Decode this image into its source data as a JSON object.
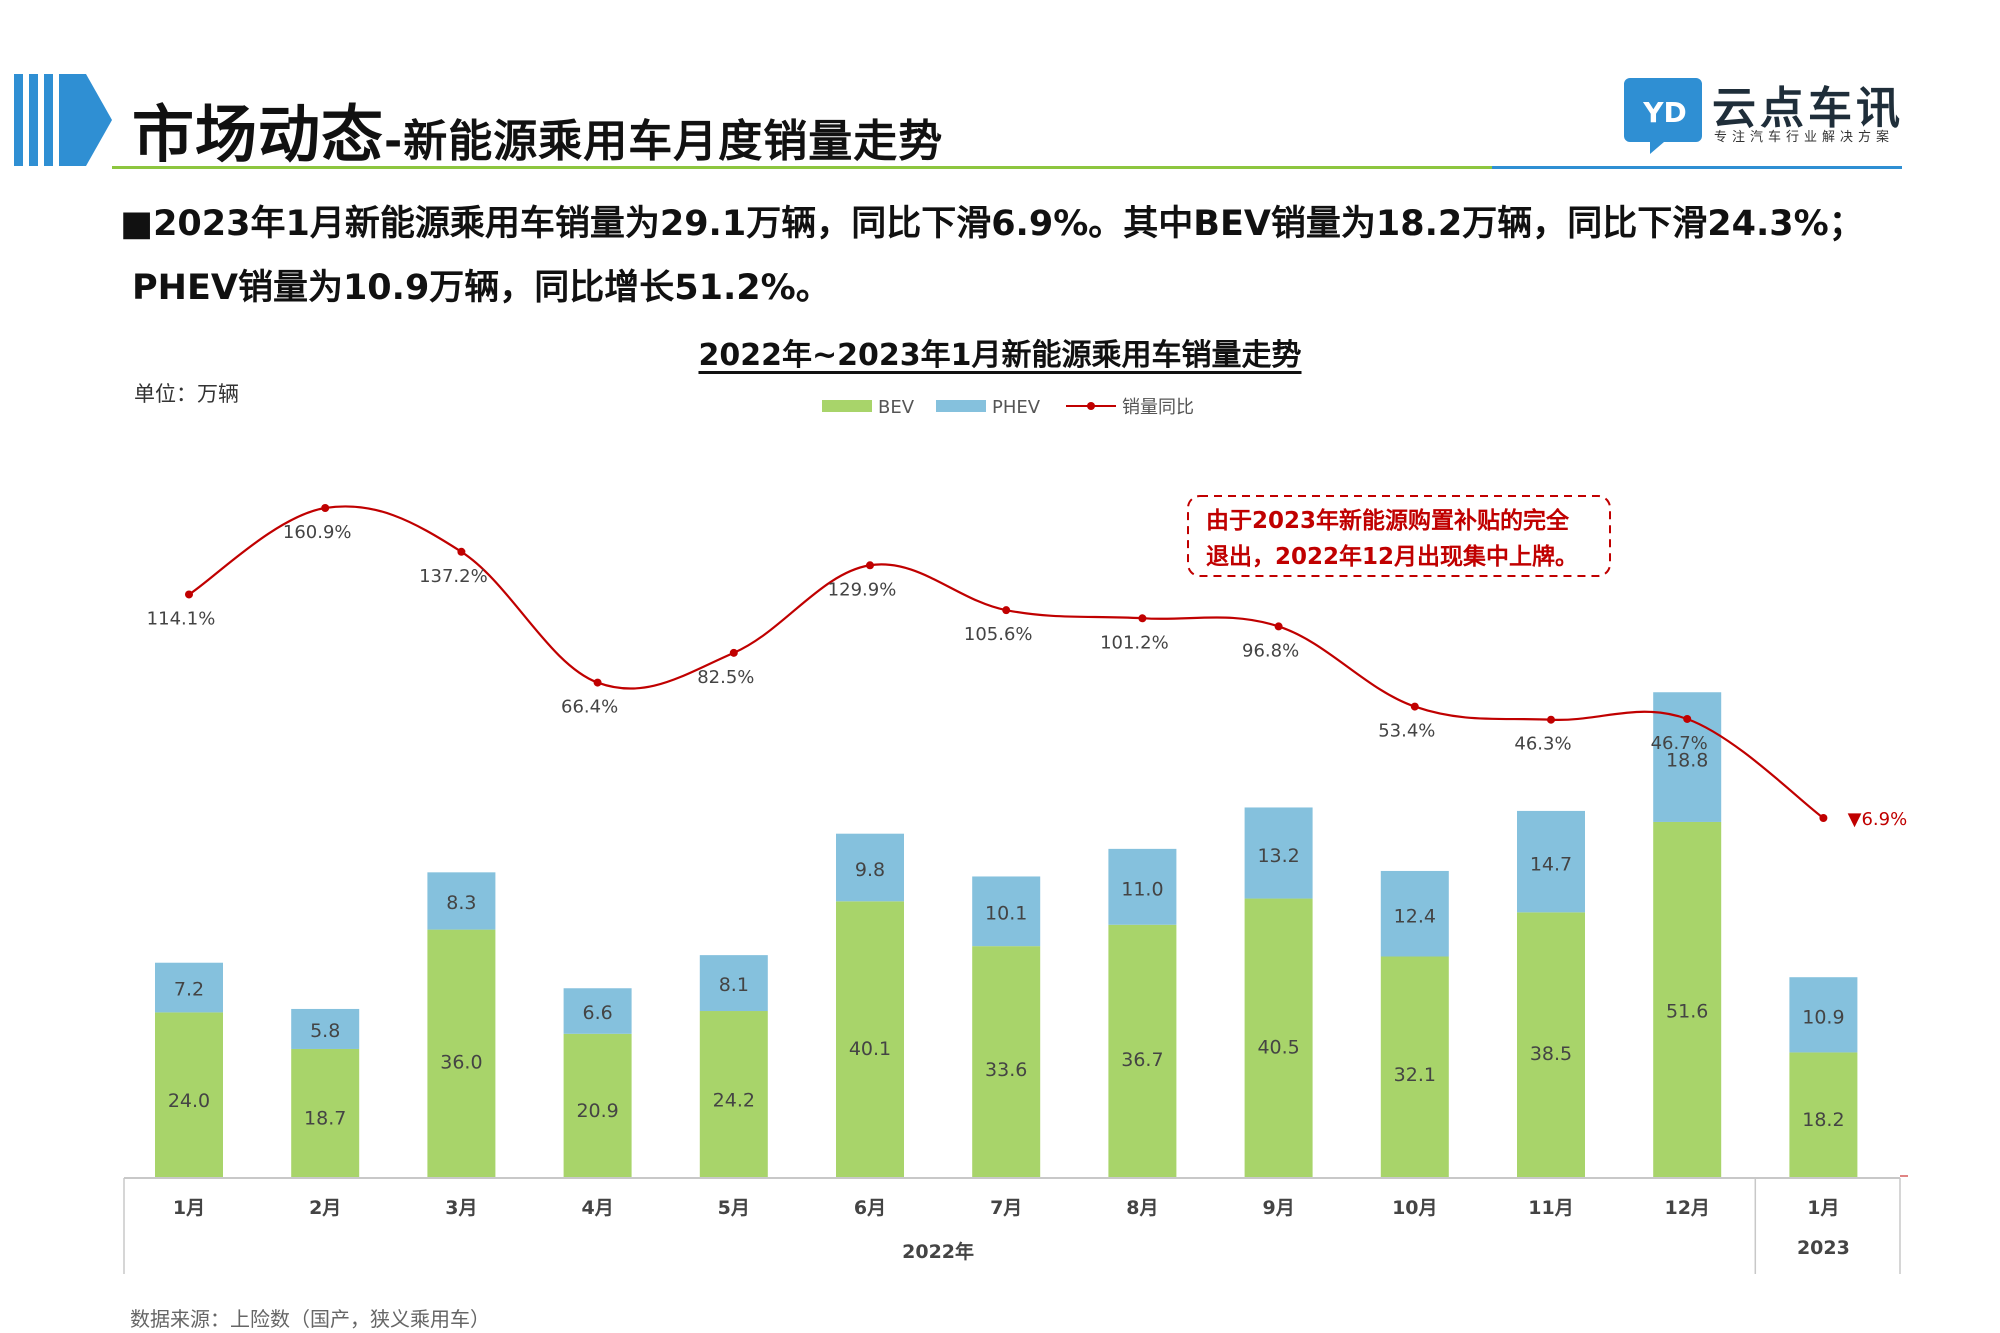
{
  "header": {
    "title_main": "市场动态",
    "title_sub": "-新能源乘用车月度销量走势",
    "brand_name": "云点车讯",
    "brand_tagline": "专注汽车行业解决方案",
    "logo_text": "YD"
  },
  "summary": {
    "line1": "■2023年1月新能源乘用车销量为29.1万辆，同比下滑6.9%。其中BEV销量为18.2万辆，同比下滑24.3%；",
    "line2": "PHEV销量为10.9万辆，同比增长51.2%。"
  },
  "footer": {
    "source": "数据来源：上险数（国产，狭义乘用车）"
  },
  "chart_data": {
    "type": "bar",
    "title": "2022年~2023年1月新能源乘用车销量走势",
    "unit_label": "单位：万辆",
    "categories": [
      "1月",
      "2月",
      "3月",
      "4月",
      "5月",
      "6月",
      "7月",
      "8月",
      "9月",
      "10月",
      "11月",
      "12月",
      "1月"
    ],
    "year_groups": [
      {
        "label": "2022年",
        "count": 12
      },
      {
        "label": "2023",
        "count": 1
      }
    ],
    "stacked": true,
    "series": [
      {
        "name": "BEV",
        "type": "bar",
        "color": "#a8d46a",
        "values": [
          24.0,
          18.7,
          36.0,
          20.9,
          24.2,
          40.1,
          33.6,
          36.7,
          40.5,
          32.1,
          38.5,
          51.6,
          18.2
        ]
      },
      {
        "name": "PHEV",
        "type": "bar",
        "color": "#85c1dd",
        "values": [
          7.2,
          5.8,
          8.3,
          6.6,
          8.1,
          9.8,
          10.1,
          11.0,
          13.2,
          12.4,
          14.7,
          18.8,
          10.9
        ]
      },
      {
        "name": "销量同比",
        "type": "line",
        "color": "#c00000",
        "values": [
          114.1,
          160.9,
          137.2,
          66.4,
          82.5,
          129.9,
          105.6,
          101.2,
          96.8,
          53.4,
          46.3,
          46.7,
          -6.9
        ],
        "labels": [
          "114.1%",
          "160.9%",
          "137.2%",
          "66.4%",
          "82.5%",
          "129.9%",
          "105.6%",
          "101.2%",
          "96.8%",
          "53.4%",
          "46.3%",
          "46.7%",
          "▼6.9%"
        ]
      }
    ],
    "annotation": {
      "line1": "由于2023年新能源购置补贴的完全",
      "line2": "退出，2022年12月出现集中上牌。"
    },
    "legend_position": "top-center",
    "grid": false
  }
}
